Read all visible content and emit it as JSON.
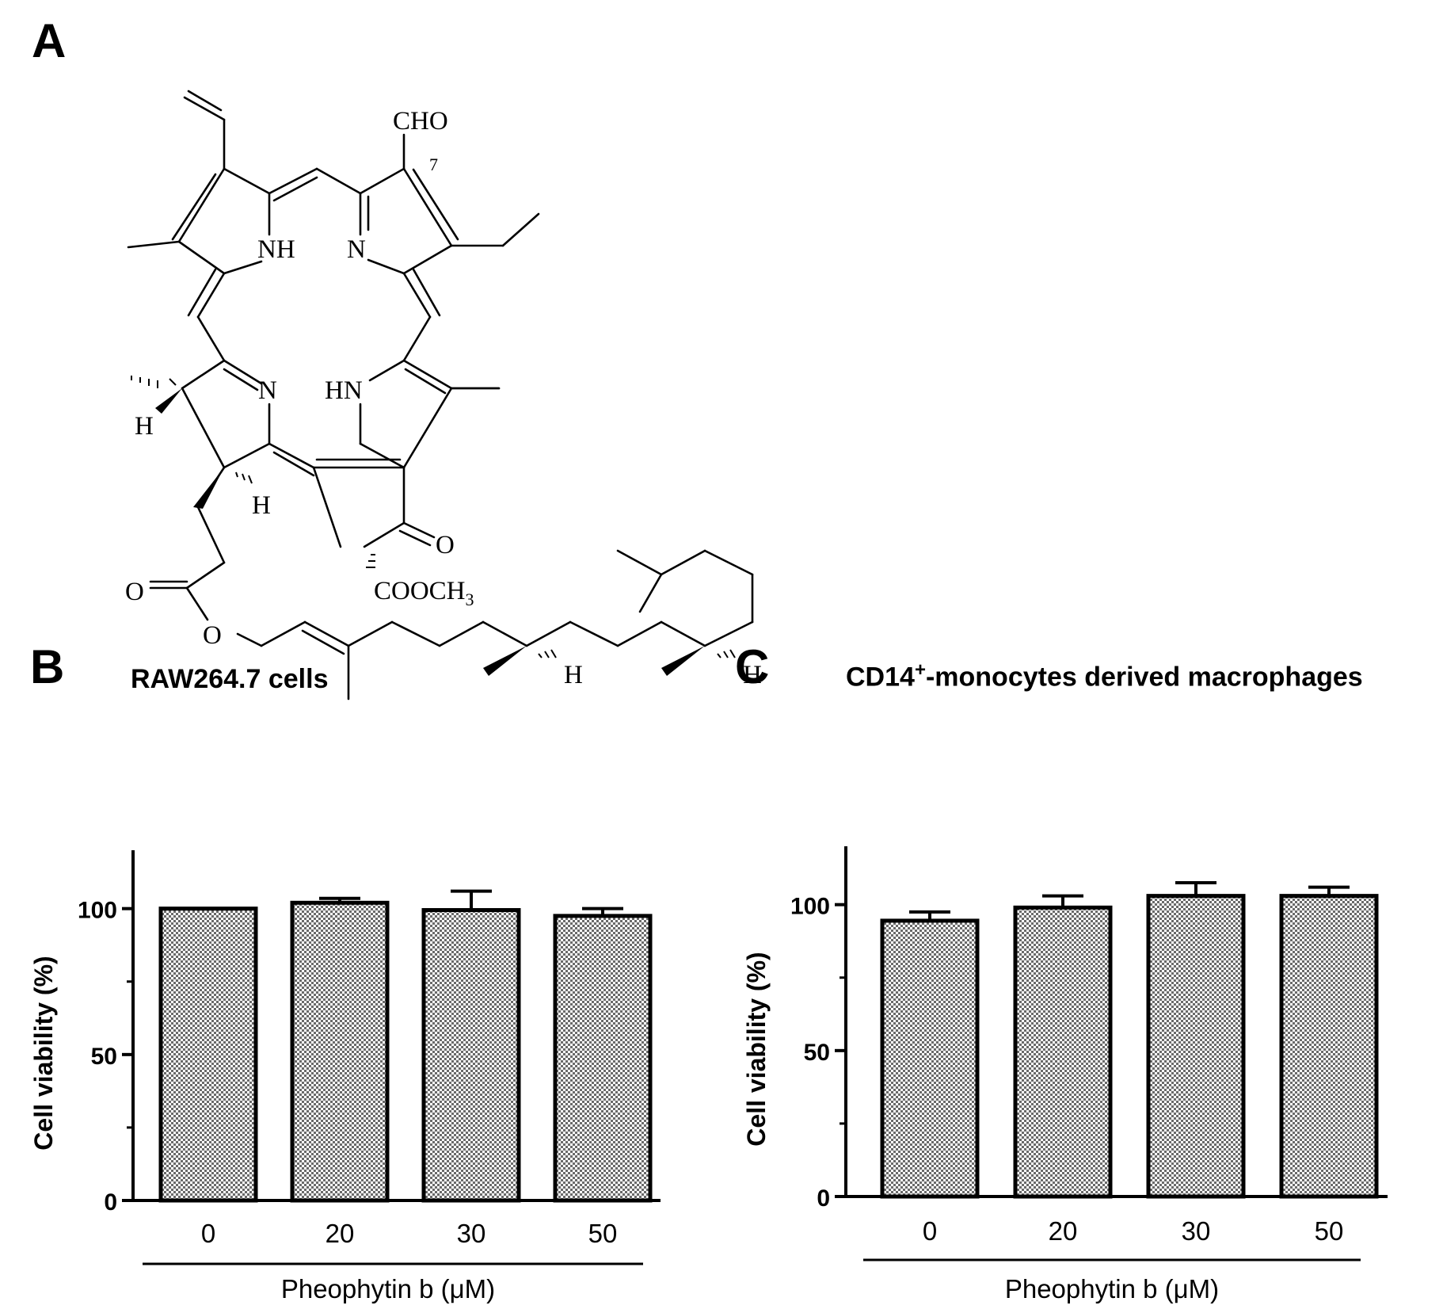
{
  "figure": {
    "panel_a": {
      "letter": "A",
      "labels": {
        "cho": "CHO",
        "seven": "7",
        "nh": "NH",
        "n_top": "N",
        "n_bottom": "N",
        "hn": "HN",
        "h_left": "H",
        "h_mid": "H",
        "o_ketone": "O",
        "cooch": "COOCH",
        "three": "3",
        "o_ester": "O",
        "o_ether": "O",
        "h_chain1": "H",
        "h_chain2": "H"
      }
    },
    "panel_b": {
      "letter": "B",
      "title": "RAW264.7 cells"
    },
    "panel_c": {
      "letter": "C",
      "title_prefix": "CD14",
      "title_sup": "+",
      "title_suffix": "-monocytes derived macrophages"
    }
  },
  "chart_data": [
    {
      "type": "bar",
      "title": "RAW264.7 cells",
      "categories": [
        "0",
        "20",
        "30",
        "50"
      ],
      "values": [
        100,
        102,
        99.5,
        97.5
      ],
      "error": [
        0,
        1.5,
        6.5,
        2.5
      ],
      "ylabel": "Cell viability (%)",
      "xlabel": "Pheophytin b (μM)",
      "ylim": [
        0,
        120
      ],
      "yticks": [
        "0",
        "50",
        "100"
      ],
      "fill": "checkered-gray",
      "grid": false
    },
    {
      "type": "bar",
      "title": "CD14+-monocytes derived macrophages",
      "categories": [
        "0",
        "20",
        "30",
        "50"
      ],
      "values": [
        94.5,
        99,
        103,
        103
      ],
      "error": [
        3,
        4,
        4.5,
        3
      ],
      "ylabel": "Cell viability (%)",
      "xlabel": "Pheophytin b (μM)",
      "ylim": [
        0,
        120
      ],
      "yticks": [
        "0",
        "50",
        "100"
      ],
      "fill": "checkered-gray",
      "grid": false
    }
  ]
}
